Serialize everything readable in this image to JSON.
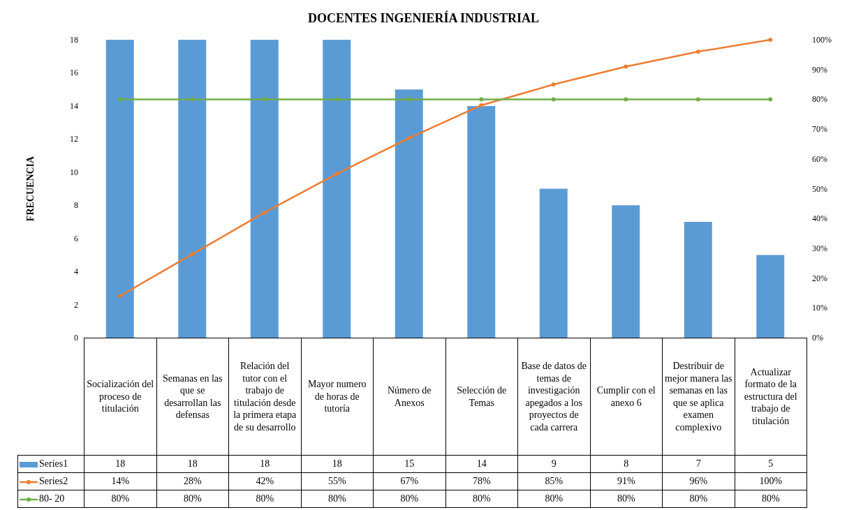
{
  "chart_data": {
    "type": "bar",
    "title": "DOCENTES INGENIERÍA INDUSTRIAL",
    "ylabel": "FRECUENCIA",
    "categories": [
      "Socialización del proceso de titulación",
      "Semanas en las que se desarrollan las defensas",
      "Relación del tutor con el trabajo de titulación desde la primera etapa de su desarrollo",
      "Mayor numero de horas de tutoría",
      "Número de Anexos",
      "Selección de Temas",
      "Base de datos de temas de investigación apegados a los proyectos de cada carrera",
      "Cumplir con el anexo 6",
      "Destribuir de mejor manera las semanas en las que se aplica examen complexivo",
      "Actualizar formato de la estructura del trabajo de titulación"
    ],
    "series": [
      {
        "name": "Series1",
        "color": "#5b9bd5",
        "values": [
          18,
          18,
          18,
          18,
          15,
          14,
          9,
          8,
          7,
          5
        ],
        "value_labels": [
          "18",
          "18",
          "18",
          "18",
          "15",
          "14",
          "9",
          "8",
          "7",
          "5"
        ]
      },
      {
        "name": "Series2",
        "type": "line",
        "axis": "y2",
        "color": "#ed7d31",
        "values": [
          14,
          28,
          42,
          55,
          67,
          78,
          85,
          91,
          96,
          100
        ],
        "value_labels": [
          "14%",
          "28%",
          "42%",
          "55%",
          "67%",
          "78%",
          "85%",
          "91%",
          "96%",
          "100%"
        ]
      },
      {
        "name": "80- 20",
        "type": "line",
        "axis": "y2",
        "color": "#70ad47",
        "values": [
          80,
          80,
          80,
          80,
          80,
          80,
          80,
          80,
          80,
          80
        ],
        "value_labels": [
          "80%",
          "80%",
          "80%",
          "80%",
          "80%",
          "80%",
          "80%",
          "80%",
          "80%",
          "80%"
        ]
      }
    ],
    "ylim": [
      0,
      18
    ],
    "yticks": [
      0,
      2,
      4,
      6,
      8,
      10,
      12,
      14,
      16,
      18
    ],
    "y2lim": [
      0,
      100
    ],
    "y2ticks": [
      {
        "value": 0,
        "label": "0%"
      },
      {
        "value": 10,
        "label": "10%"
      },
      {
        "value": 20,
        "label": "20%"
      },
      {
        "value": 30,
        "label": "30%"
      },
      {
        "value": 40,
        "label": "40%"
      },
      {
        "value": 50,
        "label": "50%"
      },
      {
        "value": 60,
        "label": "60%"
      },
      {
        "value": 70,
        "label": "70%"
      },
      {
        "value": 80,
        "label": "80%"
      },
      {
        "value": 90,
        "label": "90%"
      },
      {
        "value": 100,
        "label": "100%"
      }
    ],
    "marker": "circle",
    "legend": "bottom"
  }
}
